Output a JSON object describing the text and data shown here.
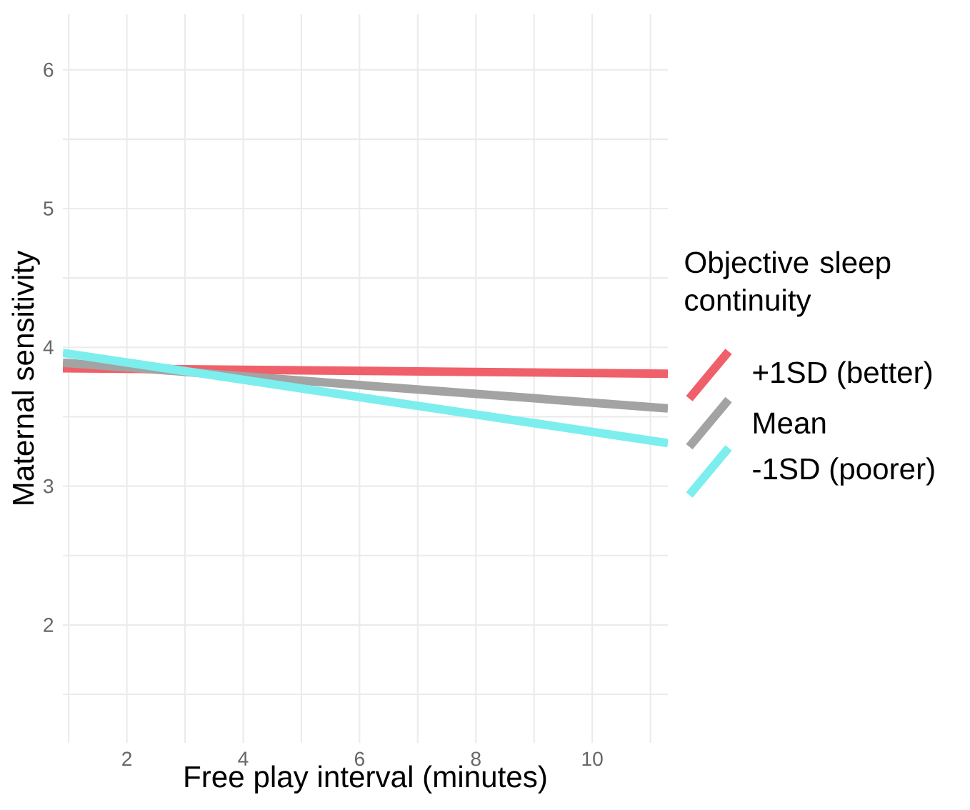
{
  "chart_data": {
    "type": "line",
    "xlabel": "Free play interval (minutes)",
    "ylabel": "Maternal sensitivity",
    "legend_title": "Objective sleep continuity",
    "legend": "right",
    "grid": true,
    "marker": "none",
    "line_style": "solid",
    "xlim": [
      0.9,
      11.3
    ],
    "ylim": [
      1.15,
      6.4
    ],
    "xticks": [
      {
        "value": 1,
        "label": null
      },
      2,
      {
        "value": 3,
        "label": null
      },
      4,
      {
        "value": 5,
        "label": null
      },
      6,
      {
        "value": 7,
        "label": null
      },
      8,
      {
        "value": 9,
        "label": null
      },
      10,
      {
        "value": 11,
        "label": null
      }
    ],
    "yticks": [
      {
        "value": 1.5,
        "label": null
      },
      2,
      {
        "value": 2.5,
        "label": null
      },
      3,
      {
        "value": 3.5,
        "label": null
      },
      4,
      {
        "value": 4.5,
        "label": null
      },
      5,
      {
        "value": 5.5,
        "label": null
      },
      6
    ],
    "x": [
      0.9,
      11.3
    ],
    "series": [
      {
        "name": "+1SD (better)",
        "color": "#f0606a",
        "values": [
          3.85,
          3.81
        ]
      },
      {
        "name": "Mean",
        "color": "#a3a3a3",
        "values": [
          3.89,
          3.56
        ]
      },
      {
        "name": "-1SD (poorer)",
        "color": "#7ceeee",
        "values": [
          3.96,
          3.31
        ]
      }
    ]
  }
}
